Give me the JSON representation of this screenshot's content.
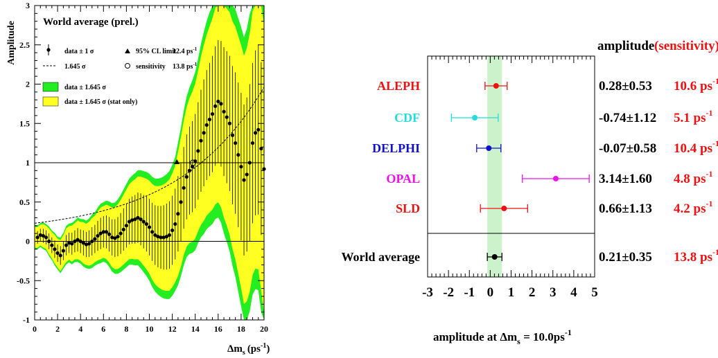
{
  "chart_data": [
    {
      "type": "line",
      "title": "World average (prel.)",
      "ylabel": "Amplitude",
      "xlabel": "Δm",
      "xlabel_sub": "s",
      "xlabel_unit": "(ps",
      "xlabel_unit_sup": "-1",
      "xlabel_close": ")",
      "xlim": [
        0,
        20
      ],
      "ylim": [
        -1,
        3
      ],
      "xticks": [
        0,
        2,
        4,
        6,
        8,
        10,
        12,
        14,
        16,
        18,
        20
      ],
      "yticks": [
        -1,
        -0.5,
        0,
        0.5,
        1,
        1.5,
        2,
        2.5,
        3
      ],
      "ytick_labels": [
        "-1",
        "-0.5",
        "0",
        "0.5",
        "1",
        "1.5",
        "2",
        "2.5",
        "3"
      ],
      "legend": {
        "data_label": "data ± 1 σ",
        "sens_curve_label": "1.645 σ",
        "limit_label": "95% CL limit",
        "limit_value": "12.4 ps",
        "sensitivity_label": "sensitivity",
        "sensitivity_value": "13.8 ps",
        "unit_sup": "-1",
        "band_green_label": "data ± 1.645 σ",
        "band_yellow_label": "data ± 1.645 σ (stat only)"
      },
      "colors": {
        "green_band": "#22ee22",
        "yellow_band": "#ffff22"
      },
      "limit_point": {
        "x": 12.4,
        "y": 1.0
      },
      "sensitivity_point": {
        "x": 13.8,
        "y": 1.0
      },
      "reference_lines": [
        0,
        1
      ],
      "x": [
        0.25,
        0.5,
        0.75,
        1.0,
        1.25,
        1.5,
        1.75,
        2.0,
        2.25,
        2.5,
        2.75,
        3.0,
        3.25,
        3.5,
        3.75,
        4.0,
        4.25,
        4.5,
        4.75,
        5.0,
        5.25,
        5.5,
        5.75,
        6.0,
        6.25,
        6.5,
        6.75,
        7.0,
        7.25,
        7.5,
        7.75,
        8.0,
        8.25,
        8.5,
        8.75,
        9.0,
        9.25,
        9.5,
        9.75,
        10.0,
        10.25,
        10.5,
        10.75,
        11.0,
        11.25,
        11.5,
        11.75,
        12.0,
        12.25,
        12.5,
        12.75,
        13.0,
        13.25,
        13.5,
        13.75,
        14.0,
        14.25,
        14.5,
        14.75,
        15.0,
        15.25,
        15.5,
        15.75,
        16.0,
        16.25,
        16.5,
        16.75,
        17.0,
        17.25,
        17.5,
        17.75,
        18.0,
        18.25,
        18.5,
        18.75,
        19.0,
        19.25,
        19.5,
        19.75,
        20.0
      ],
      "amplitude": [
        0.05,
        0.08,
        0.07,
        0.05,
        0.0,
        -0.05,
        -0.1,
        -0.15,
        -0.18,
        -0.12,
        -0.05,
        -0.02,
        -0.03,
        0.0,
        0.02,
        0.0,
        -0.02,
        -0.04,
        -0.03,
        0.0,
        0.03,
        0.07,
        0.1,
        0.12,
        0.12,
        0.09,
        0.05,
        0.04,
        0.06,
        0.1,
        0.15,
        0.2,
        0.25,
        0.27,
        0.28,
        0.3,
        0.28,
        0.25,
        0.22,
        0.18,
        0.12,
        0.08,
        0.06,
        0.05,
        0.05,
        0.06,
        0.08,
        0.14,
        0.22,
        0.35,
        0.5,
        0.68,
        0.82,
        0.9,
        0.95,
        1.02,
        1.15,
        1.28,
        1.38,
        1.48,
        1.55,
        1.62,
        1.72,
        1.78,
        1.75,
        1.65,
        1.58,
        1.5,
        1.35,
        1.25,
        1.1,
        0.95,
        0.78,
        0.85,
        1.0,
        1.25,
        1.38,
        1.42,
        1.18,
        0.92
      ],
      "sigma": [
        0.08,
        0.08,
        0.09,
        0.09,
        0.1,
        0.1,
        0.11,
        0.11,
        0.12,
        0.12,
        0.13,
        0.13,
        0.14,
        0.14,
        0.15,
        0.15,
        0.16,
        0.16,
        0.17,
        0.18,
        0.18,
        0.19,
        0.2,
        0.2,
        0.21,
        0.22,
        0.23,
        0.24,
        0.25,
        0.26,
        0.27,
        0.28,
        0.29,
        0.3,
        0.31,
        0.32,
        0.33,
        0.34,
        0.35,
        0.36,
        0.37,
        0.38,
        0.39,
        0.4,
        0.41,
        0.42,
        0.43,
        0.44,
        0.45,
        0.48,
        0.5,
        0.52,
        0.54,
        0.56,
        0.58,
        0.6,
        0.62,
        0.65,
        0.68,
        0.7,
        0.72,
        0.74,
        0.76,
        0.78,
        0.8,
        0.82,
        0.84,
        0.86,
        0.88,
        0.9,
        0.92,
        0.94,
        0.96,
        0.98,
        1.0,
        1.02,
        1.05,
        1.08,
        1.1,
        1.12
      ]
    },
    {
      "type": "scatter",
      "xlabel": "amplitude at Δm",
      "xlabel_sub": "s",
      "xlabel_tail": " = 10.0ps",
      "xlabel_sup": "-1",
      "xlim": [
        -3,
        5
      ],
      "xticks": [
        -3,
        -2,
        -1,
        0,
        1,
        2,
        3,
        4,
        5
      ],
      "header_amplitude": "amplitude",
      "header_sensitivity": "(sensitivity)",
      "unit": "ps",
      "unit_sup": "-1",
      "band": {
        "center": 0.21,
        "half_width": 0.35,
        "color": "#ccf2cc"
      },
      "rows": [
        {
          "name": "ALEPH",
          "value": 0.28,
          "err": 0.53,
          "amp_text": "0.28±0.53",
          "sens_text": "10.6",
          "color": "#ee1111"
        },
        {
          "name": "CDF",
          "value": -0.74,
          "err": 1.12,
          "amp_text": "-0.74±1.12",
          "sens_text": "5.1",
          "color": "#22dddd"
        },
        {
          "name": "DELPHI",
          "value": -0.07,
          "err": 0.58,
          "amp_text": "-0.07±0.58",
          "sens_text": "10.4",
          "color": "#1111cc"
        },
        {
          "name": "OPAL",
          "value": 3.14,
          "err": 1.6,
          "amp_text": "3.14±1.60",
          "sens_text": "4.8",
          "color": "#ee11ee"
        },
        {
          "name": "SLD",
          "value": 0.66,
          "err": 1.13,
          "amp_text": "0.66±1.13",
          "sens_text": "4.2",
          "color": "#ee1111"
        }
      ],
      "average": {
        "name": "World average",
        "value": 0.21,
        "err": 0.35,
        "amp_text": "0.21±0.35",
        "sens_text": "13.8",
        "color": "#000000"
      }
    }
  ]
}
